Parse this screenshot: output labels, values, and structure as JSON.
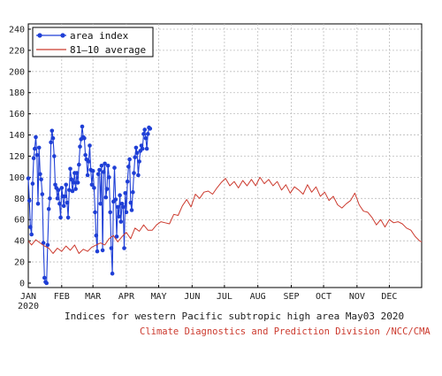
{
  "chart_data": {
    "type": "line",
    "title": "Indices for western Pacific subtropic high area May03 2020",
    "credit": "Climate Diagnostics and Prediction Division /NCC/CMA",
    "ylim": [
      0,
      245
    ],
    "yticks": [
      0,
      20,
      40,
      60,
      80,
      100,
      120,
      140,
      160,
      180,
      200,
      220,
      240
    ],
    "xlim": [
      1,
      366
    ],
    "year_label": "2020",
    "months": [
      {
        "label": "JAN",
        "day": 1
      },
      {
        "label": "FEB",
        "day": 32
      },
      {
        "label": "MAR",
        "day": 61
      },
      {
        "label": "APR",
        "day": 92
      },
      {
        "label": "MAY",
        "day": 122
      },
      {
        "label": "JUN",
        "day": 153
      },
      {
        "label": "JUL",
        "day": 183
      },
      {
        "label": "AUG",
        "day": 214
      },
      {
        "label": "SEP",
        "day": 245
      },
      {
        "label": "OCT",
        "day": 275
      },
      {
        "label": "NOV",
        "day": 306
      },
      {
        "label": "DEC",
        "day": 336
      }
    ],
    "grid": true,
    "legend_position": "top-left",
    "series": [
      {
        "name": "area index",
        "color": "#1f3fd6",
        "marker": "circle",
        "points": [
          [
            1,
            99
          ],
          [
            2,
            78
          ],
          [
            3,
            53
          ],
          [
            4,
            46
          ],
          [
            5,
            94
          ],
          [
            6,
            118
          ],
          [
            7,
            127
          ],
          [
            8,
            138
          ],
          [
            9,
            121
          ],
          [
            10,
            75
          ],
          [
            11,
            128
          ],
          [
            12,
            103
          ],
          [
            13,
            98
          ],
          [
            14,
            84
          ],
          [
            15,
            38
          ],
          [
            16,
            5
          ],
          [
            17,
            1
          ],
          [
            18,
            0
          ],
          [
            19,
            36
          ],
          [
            20,
            70
          ],
          [
            21,
            80
          ],
          [
            22,
            133
          ],
          [
            23,
            144
          ],
          [
            24,
            137
          ],
          [
            25,
            120
          ],
          [
            26,
            93
          ],
          [
            27,
            90
          ],
          [
            28,
            80
          ],
          [
            29,
            88
          ],
          [
            30,
            75
          ],
          [
            31,
            62
          ],
          [
            32,
            90
          ],
          [
            33,
            82
          ],
          [
            34,
            73
          ],
          [
            35,
            82
          ],
          [
            36,
            93
          ],
          [
            37,
            76
          ],
          [
            38,
            62
          ],
          [
            39,
            88
          ],
          [
            40,
            108
          ],
          [
            41,
            98
          ],
          [
            42,
            87
          ],
          [
            43,
            95
          ],
          [
            44,
            104
          ],
          [
            45,
            89
          ],
          [
            46,
            104
          ],
          [
            47,
            95
          ],
          [
            48,
            112
          ],
          [
            49,
            129
          ],
          [
            50,
            136
          ],
          [
            51,
            148
          ],
          [
            52,
            138
          ],
          [
            53,
            137
          ],
          [
            54,
            121
          ],
          [
            55,
            117
          ],
          [
            56,
            102
          ],
          [
            57,
            115
          ],
          [
            58,
            130
          ],
          [
            59,
            107
          ],
          [
            60,
            93
          ],
          [
            61,
            106
          ],
          [
            62,
            90
          ],
          [
            63,
            67
          ],
          [
            64,
            45
          ],
          [
            65,
            30
          ],
          [
            66,
            103
          ],
          [
            67,
            107
          ],
          [
            68,
            75
          ],
          [
            69,
            111
          ],
          [
            70,
            31
          ],
          [
            71,
            105
          ],
          [
            72,
            113
          ],
          [
            73,
            81
          ],
          [
            74,
            89
          ],
          [
            75,
            111
          ],
          [
            76,
            100
          ],
          [
            77,
            67
          ],
          [
            78,
            33
          ],
          [
            79,
            9
          ],
          [
            80,
            77
          ],
          [
            81,
            109
          ],
          [
            82,
            79
          ],
          [
            83,
            44
          ],
          [
            84,
            72
          ],
          [
            85,
            63
          ],
          [
            86,
            83
          ],
          [
            87,
            58
          ],
          [
            88,
            75
          ],
          [
            89,
            72
          ],
          [
            90,
            33
          ],
          [
            91,
            85
          ],
          [
            92,
            67
          ],
          [
            93,
            96
          ],
          [
            94,
            110
          ],
          [
            95,
            117
          ],
          [
            96,
            76
          ],
          [
            97,
            69
          ],
          [
            98,
            86
          ],
          [
            99,
            104
          ],
          [
            100,
            119
          ],
          [
            101,
            128
          ],
          [
            102,
            123
          ],
          [
            103,
            102
          ],
          [
            104,
            115
          ],
          [
            105,
            125
          ],
          [
            106,
            130
          ],
          [
            107,
            127
          ],
          [
            108,
            141
          ],
          [
            109,
            145
          ],
          [
            110,
            137
          ],
          [
            111,
            127
          ],
          [
            112,
            141
          ],
          [
            113,
            147
          ],
          [
            114,
            146
          ]
        ]
      },
      {
        "name": "81–10 average",
        "color": "#cc3a2e",
        "marker": "none",
        "points": [
          [
            1,
            40
          ],
          [
            4,
            36
          ],
          [
            8,
            41
          ],
          [
            12,
            38
          ],
          [
            16,
            35
          ],
          [
            20,
            33
          ],
          [
            24,
            28
          ],
          [
            28,
            33
          ],
          [
            32,
            30
          ],
          [
            36,
            35
          ],
          [
            40,
            31
          ],
          [
            44,
            36
          ],
          [
            48,
            28
          ],
          [
            52,
            32
          ],
          [
            56,
            30
          ],
          [
            60,
            34
          ],
          [
            64,
            36
          ],
          [
            68,
            38
          ],
          [
            72,
            36
          ],
          [
            76,
            42
          ],
          [
            80,
            45
          ],
          [
            84,
            39
          ],
          [
            88,
            44
          ],
          [
            92,
            48
          ],
          [
            96,
            42
          ],
          [
            100,
            52
          ],
          [
            104,
            49
          ],
          [
            108,
            55
          ],
          [
            112,
            50
          ],
          [
            116,
            50
          ],
          [
            120,
            55
          ],
          [
            124,
            58
          ],
          [
            128,
            57
          ],
          [
            132,
            56
          ],
          [
            136,
            65
          ],
          [
            140,
            64
          ],
          [
            144,
            73
          ],
          [
            148,
            79
          ],
          [
            152,
            72
          ],
          [
            156,
            84
          ],
          [
            160,
            80
          ],
          [
            164,
            86
          ],
          [
            168,
            87
          ],
          [
            172,
            84
          ],
          [
            176,
            90
          ],
          [
            180,
            95
          ],
          [
            184,
            99
          ],
          [
            188,
            92
          ],
          [
            192,
            96
          ],
          [
            196,
            90
          ],
          [
            200,
            97
          ],
          [
            204,
            92
          ],
          [
            208,
            98
          ],
          [
            212,
            92
          ],
          [
            216,
            100
          ],
          [
            220,
            94
          ],
          [
            224,
            98
          ],
          [
            228,
            92
          ],
          [
            232,
            96
          ],
          [
            236,
            88
          ],
          [
            240,
            93
          ],
          [
            244,
            85
          ],
          [
            248,
            91
          ],
          [
            252,
            88
          ],
          [
            256,
            84
          ],
          [
            260,
            93
          ],
          [
            264,
            86
          ],
          [
            268,
            91
          ],
          [
            272,
            82
          ],
          [
            276,
            86
          ],
          [
            280,
            78
          ],
          [
            284,
            82
          ],
          [
            288,
            74
          ],
          [
            292,
            71
          ],
          [
            296,
            75
          ],
          [
            300,
            78
          ],
          [
            304,
            85
          ],
          [
            308,
            74
          ],
          [
            312,
            68
          ],
          [
            316,
            67
          ],
          [
            320,
            62
          ],
          [
            324,
            55
          ],
          [
            328,
            60
          ],
          [
            332,
            53
          ],
          [
            336,
            60
          ],
          [
            340,
            57
          ],
          [
            344,
            58
          ],
          [
            348,
            56
          ],
          [
            352,
            52
          ],
          [
            356,
            50
          ],
          [
            360,
            44
          ],
          [
            364,
            40
          ],
          [
            366,
            39
          ]
        ]
      }
    ]
  }
}
